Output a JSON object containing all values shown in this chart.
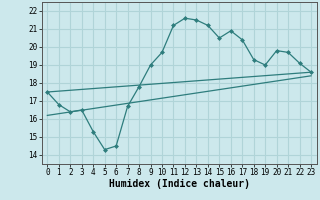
{
  "xlabel": "Humidex (Indice chaleur)",
  "bg_color": "#cce8ec",
  "line_color": "#2e7d7d",
  "grid_color": "#b0d4d8",
  "xlim": [
    -0.5,
    23.5
  ],
  "ylim": [
    13.5,
    22.5
  ],
  "yticks": [
    14,
    15,
    16,
    17,
    18,
    19,
    20,
    21,
    22
  ],
  "xticks": [
    0,
    1,
    2,
    3,
    4,
    5,
    6,
    7,
    8,
    9,
    10,
    11,
    12,
    13,
    14,
    15,
    16,
    17,
    18,
    19,
    20,
    21,
    22,
    23
  ],
  "main_x": [
    0,
    1,
    2,
    3,
    4,
    5,
    6,
    7,
    8,
    9,
    10,
    11,
    12,
    13,
    14,
    15,
    16,
    17,
    18,
    19,
    20,
    21,
    22,
    23
  ],
  "main_y": [
    17.5,
    16.8,
    16.4,
    16.5,
    15.3,
    14.3,
    14.5,
    16.7,
    17.8,
    19.0,
    19.7,
    21.2,
    21.6,
    21.5,
    21.2,
    20.5,
    20.9,
    20.4,
    19.3,
    19.0,
    19.8,
    19.7,
    19.1,
    18.6
  ],
  "line1_x": [
    0,
    23
  ],
  "line1_y": [
    17.5,
    18.6
  ],
  "line2_x": [
    0,
    23
  ],
  "line2_y": [
    16.2,
    18.4
  ],
  "tick_fontsize": 5.5,
  "xlabel_fontsize": 7
}
